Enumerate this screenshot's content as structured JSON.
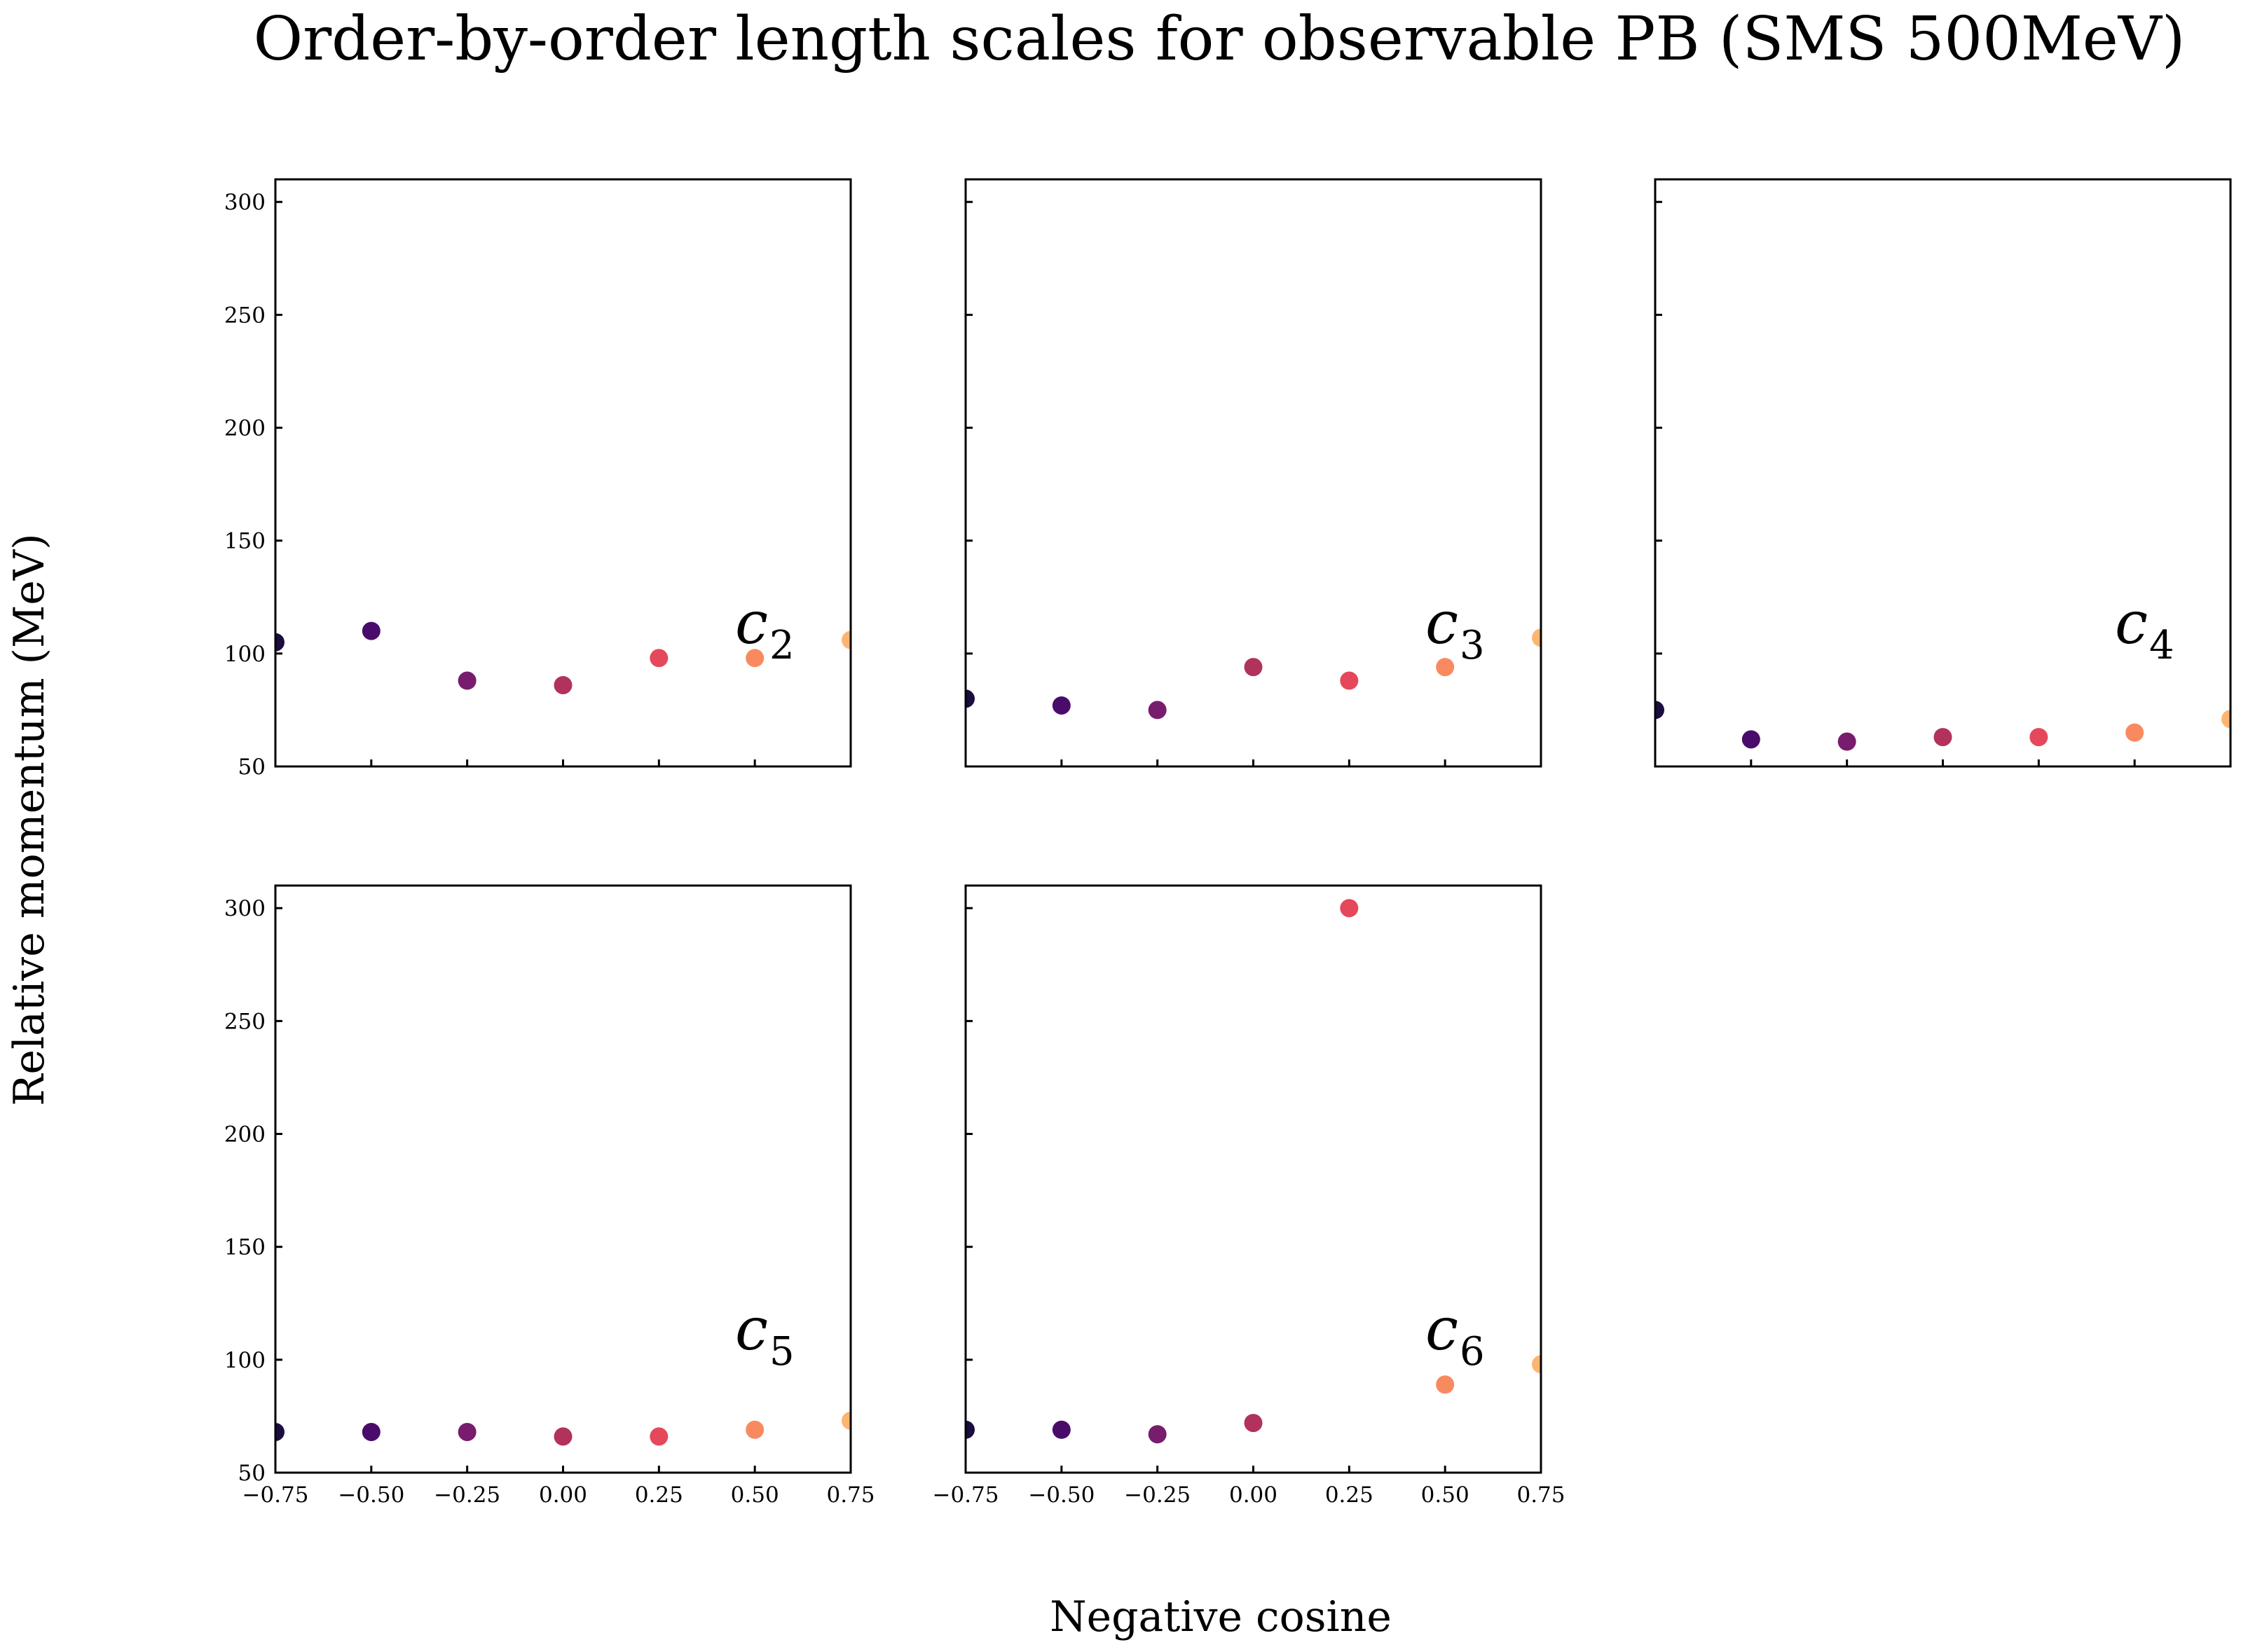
{
  "figure": {
    "title": "Order-by-order length scales for observable PB (SMS 500MeV)",
    "xlabel": "Negative cosine",
    "ylabel": "Relative momentum (MeV)"
  },
  "chart_data": {
    "type": "scatter",
    "x": [
      -0.75,
      -0.5,
      -0.25,
      0.0,
      0.25,
      0.5,
      0.75
    ],
    "xlim": [
      -0.75,
      0.75
    ],
    "ylim": [
      50,
      310
    ],
    "xticks": [
      "−0.75",
      "−0.50",
      "−0.25",
      "0.00",
      "0.25",
      "0.50",
      "0.75"
    ],
    "yticks": [
      "50",
      "100",
      "150",
      "200",
      "250",
      "300"
    ],
    "point_colors": [
      "#1b0c41",
      "#4a0c6b",
      "#781c6d",
      "#b1325a",
      "#e5485a",
      "#f98a60",
      "#fcb671"
    ],
    "panels": [
      {
        "label": "c",
        "sub": "2",
        "values": [
          105,
          110,
          88,
          86,
          98,
          98,
          106
        ]
      },
      {
        "label": "c",
        "sub": "3",
        "values": [
          80,
          77,
          75,
          94,
          88,
          94,
          107
        ]
      },
      {
        "label": "c",
        "sub": "4",
        "values": [
          75,
          62,
          61,
          63,
          63,
          65,
          71
        ]
      },
      {
        "label": "c",
        "sub": "5",
        "values": [
          68,
          68,
          68,
          66,
          66,
          69,
          73
        ]
      },
      {
        "label": "c",
        "sub": "6",
        "values": [
          69,
          69,
          67,
          72,
          300,
          89,
          98
        ]
      }
    ],
    "grid": false
  }
}
